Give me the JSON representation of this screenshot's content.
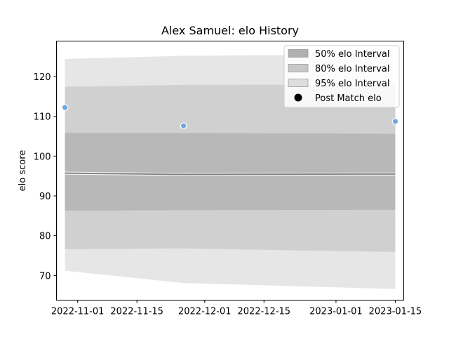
{
  "chart_data": {
    "type": "area",
    "title": "Alex Samuel: elo History",
    "xlabel": "",
    "ylabel": "elo score",
    "x_ticks": [
      "2022-11-01",
      "2022-11-15",
      "2022-12-01",
      "2022-12-15",
      "2023-01-01",
      "2023-01-15"
    ],
    "y_ticks": [
      70,
      80,
      90,
      100,
      110,
      120
    ],
    "xlim": [
      "2022-10-27",
      "2023-01-17"
    ],
    "ylim": [
      63.8,
      128.9
    ],
    "grid": false,
    "legend_position": "top-right",
    "x": [
      "2022-10-29",
      "2022-11-26",
      "2023-01-15"
    ],
    "mean": [
      95.7,
      95.4,
      95.5
    ],
    "intervals": [
      {
        "name": "50% elo Interval",
        "lower": [
          86.3,
          86.4,
          86.5
        ],
        "upper": [
          105.8,
          105.8,
          105.6
        ],
        "color": "#b0b0b0"
      },
      {
        "name": "80% elo Interval",
        "lower": [
          76.6,
          76.8,
          75.9
        ],
        "upper": [
          117.4,
          117.9,
          118.0
        ],
        "color": "#c8c8c8"
      },
      {
        "name": "95% elo Interval",
        "lower": [
          71.2,
          68.1,
          66.6
        ],
        "upper": [
          124.4,
          125.2,
          125.6
        ],
        "color": "#dedede"
      }
    ],
    "series": [
      {
        "name": "Post Match elo",
        "type": "scatter",
        "color": "#6fa8dc",
        "points": [
          {
            "x": "2022-10-29",
            "y": 112.2
          },
          {
            "x": "2022-11-26",
            "y": 107.6
          },
          {
            "x": "2023-01-15",
            "y": 108.7
          }
        ]
      }
    ]
  }
}
